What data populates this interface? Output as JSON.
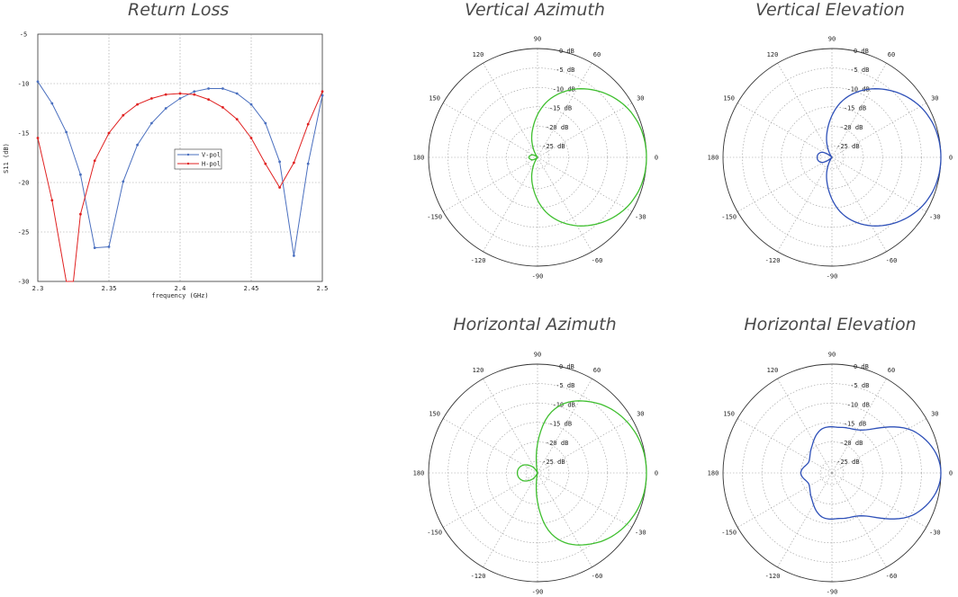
{
  "titles": {
    "return_loss": "Return Loss",
    "vertical_azimuth": "Vertical Azimuth",
    "vertical_elevation": "Vertical Elevation",
    "horizontal_azimuth": "Horizontal Azimuth",
    "horizontal_elevation": "Horizontal Elevation"
  },
  "colors": {
    "v_pol": "#4a6fbf",
    "h_pol": "#e02020",
    "azimuth": "#3fbf2f",
    "elevation": "#2e50b8"
  },
  "chart_data": [
    {
      "type": "line",
      "title": "Return Loss",
      "xlabel": "frequency (GHz)",
      "ylabel": "S11 (dB)",
      "xlim": [
        2.3,
        2.5
      ],
      "ylim": [
        -30,
        -5
      ],
      "xticks": [
        "2.3",
        "2.35",
        "2.4",
        "2.45",
        "2.5"
      ],
      "yticks": [
        "-5",
        "-10",
        "-15",
        "-20",
        "-25",
        "-30"
      ],
      "grid": true,
      "legend_placement": "center-right",
      "series": [
        {
          "name": "V-pol",
          "color": "#4a6fbf",
          "x": [
            2.3,
            2.31,
            2.32,
            2.33,
            2.34,
            2.35,
            2.36,
            2.37,
            2.38,
            2.39,
            2.4,
            2.41,
            2.42,
            2.43,
            2.44,
            2.45,
            2.46,
            2.47,
            2.48,
            2.49,
            2.5
          ],
          "values": [
            -9.8,
            -12.0,
            -14.9,
            -19.2,
            -26.6,
            -26.5,
            -19.9,
            -16.2,
            -14.0,
            -12.5,
            -11.5,
            -10.8,
            -10.5,
            -10.5,
            -11.0,
            -12.1,
            -14.0,
            -17.9,
            -27.4,
            -18.1,
            -11.2
          ]
        },
        {
          "name": "H-pol",
          "color": "#e02020",
          "x": [
            2.3,
            2.31,
            2.32,
            2.325,
            2.33,
            2.34,
            2.35,
            2.36,
            2.37,
            2.38,
            2.39,
            2.4,
            2.41,
            2.42,
            2.43,
            2.44,
            2.45,
            2.46,
            2.47,
            2.48,
            2.49,
            2.5
          ],
          "values": [
            -15.5,
            -21.8,
            -30.0,
            -30.0,
            -23.2,
            -17.8,
            -15.0,
            -13.2,
            -12.1,
            -11.5,
            -11.1,
            -11.0,
            -11.1,
            -11.6,
            -12.4,
            -13.6,
            -15.5,
            -18.1,
            -20.5,
            -18.0,
            -14.1,
            -10.8
          ]
        }
      ]
    },
    {
      "type": "polar",
      "title": "Vertical Azimuth",
      "angle_ticks": [
        "0",
        "30",
        "60",
        "90",
        "120",
        "150",
        "180",
        "-150",
        "-120",
        "-90",
        "-60",
        "-30"
      ],
      "radial_ticks": [
        "0 dB",
        "-5 dB",
        "-10 dB",
        "-15 dB",
        "-20 dB",
        "-25 dB"
      ],
      "rlim_db": [
        -28,
        0
      ],
      "series": [
        {
          "color": "#3fbf2f",
          "angles_deg": [
            0,
            30,
            60,
            90,
            120,
            150,
            165,
            180,
            195,
            210,
            240,
            270,
            300,
            330
          ],
          "values_db": [
            0,
            -1.3,
            -5.7,
            -12.4,
            -21.6,
            -28,
            -26.5,
            -25.8,
            -26.5,
            -28,
            -21.6,
            -12.4,
            -5.7,
            -1.3
          ]
        }
      ]
    },
    {
      "type": "polar",
      "title": "Vertical Elevation",
      "angle_ticks": [
        "0",
        "30",
        "60",
        "90",
        "120",
        "150",
        "180",
        "-150",
        "-120",
        "-90",
        "-60",
        "-30"
      ],
      "radial_ticks": [
        "0 dB",
        "-5 dB",
        "-10 dB",
        "-15 dB",
        "-20 dB",
        "-25 dB"
      ],
      "rlim_db": [
        -28,
        0
      ],
      "series": [
        {
          "color": "#2e50b8",
          "angles_deg": [
            0,
            30,
            60,
            90,
            120,
            150,
            165,
            180,
            195,
            210,
            240,
            270,
            300,
            330
          ],
          "values_db": [
            0,
            -1.3,
            -5.7,
            -12.4,
            -22,
            -28,
            -25,
            -24.2,
            -25,
            -28,
            -22,
            -12.4,
            -5.7,
            -1.3
          ]
        }
      ]
    },
    {
      "type": "polar",
      "title": "Horizontal Azimuth",
      "angle_ticks": [
        "0",
        "30",
        "60",
        "90",
        "120",
        "150",
        "180",
        "-150",
        "-120",
        "-90",
        "-60",
        "-30"
      ],
      "radial_ticks": [
        "0 dB",
        "-5 dB",
        "-10 dB",
        "-15 dB",
        "-20 dB",
        "-25 dB"
      ],
      "rlim_db": [
        -28,
        0
      ],
      "series": [
        {
          "color": "#3fbf2f",
          "angles_deg": [
            0,
            30,
            60,
            90,
            120,
            150,
            165,
            180,
            195,
            210,
            240,
            270,
            300,
            330
          ],
          "values_db": [
            0,
            -1.1,
            -4.8,
            -11.9,
            -28,
            -26,
            -23.6,
            -22.8,
            -23.6,
            -26,
            -28,
            -11.9,
            -4.8,
            -1.1
          ]
        }
      ]
    },
    {
      "type": "polar",
      "title": "Horizontal Elevation",
      "angle_ticks": [
        "0",
        "30",
        "60",
        "90",
        "120",
        "150",
        "180",
        "-150",
        "-120",
        "-90",
        "-60",
        "-30"
      ],
      "radial_ticks": [
        "0 dB",
        "-5 dB",
        "-10 dB",
        "-15 dB",
        "-20 dB",
        "-25 dB"
      ],
      "rlim_db": [
        -28,
        0
      ],
      "series": [
        {
          "color": "#2e50b8",
          "angles_deg": [
            0,
            30,
            60,
            90,
            120,
            150,
            165,
            180,
            195,
            210,
            240,
            270,
            300,
            330
          ],
          "values_db": [
            0,
            -4.0,
            -13.8,
            -16.0,
            -16.4,
            -19.6,
            -21.4,
            -20.0,
            -21.4,
            -19.6,
            -16.4,
            -16.0,
            -13.8,
            -4.0
          ]
        }
      ]
    }
  ]
}
